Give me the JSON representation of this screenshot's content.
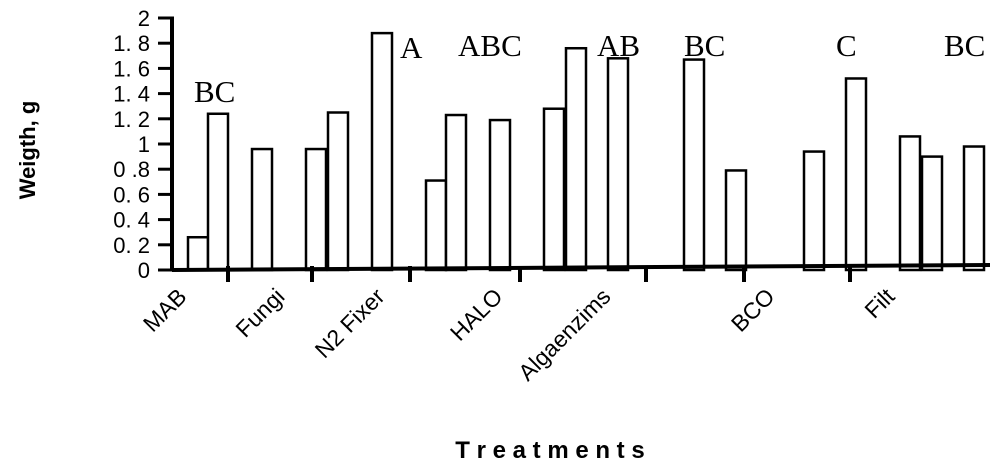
{
  "chart_data": {
    "type": "bar",
    "title": "",
    "xlabel": "T r e a t m  e n t s",
    "ylabel": "Weigth, g",
    "ylim": [
      0,
      2
    ],
    "yticks": [
      "0",
      "0. 2",
      "0. 4",
      "0. 6",
      "0 .8",
      "1",
      "1. 2",
      "1. 4",
      "1. 6",
      "1. 8",
      "2"
    ],
    "ytick_values": [
      0,
      0.2,
      0.4,
      0.6,
      0.8,
      1.0,
      1.2,
      1.4,
      1.6,
      1.8,
      2.0
    ],
    "categories": [
      "MAB",
      "Fungi",
      "N2 Fixer",
      "HALO",
      "Algaenzims",
      "BCO",
      "Filt"
    ],
    "group_letters": [
      "BC",
      "A",
      "ABC",
      "AB",
      "BC",
      "C",
      "BC"
    ],
    "bars": [
      {
        "category": "MAB",
        "value": 0.26
      },
      {
        "category": "MAB",
        "value": 1.24
      },
      {
        "category": "Fungi",
        "value": 0.96
      },
      {
        "category": "Fungi",
        "value": 0
      },
      {
        "category": "N2 Fixer",
        "value": 0.96
      },
      {
        "category": "N2 Fixer",
        "value": 1.25
      },
      {
        "category": "N2 Fixer",
        "value": 1.88
      },
      {
        "category": "HALO",
        "value": 0.71
      },
      {
        "category": "HALO",
        "value": 1.23
      },
      {
        "category": "HALO",
        "value": 1.19
      },
      {
        "category": "Algaenzims",
        "value": 1.28
      },
      {
        "category": "Algaenzims",
        "value": 1.76
      },
      {
        "category": "Algaenzims",
        "value": 1.68
      },
      {
        "category": "Algaenzims",
        "value": 0
      },
      {
        "category": "BCO",
        "value": 1.67
      },
      {
        "category": "BCO",
        "value": 0.79
      },
      {
        "category": "BCO",
        "value": 0
      },
      {
        "category": "Filt",
        "value": 0.94
      },
      {
        "category": "Filt",
        "value": 1.52
      },
      {
        "category": "Filt",
        "value": 1.06
      },
      {
        "category": "Filt",
        "value": 0.9
      },
      {
        "category": "Filt",
        "value": 0.98
      }
    ]
  }
}
